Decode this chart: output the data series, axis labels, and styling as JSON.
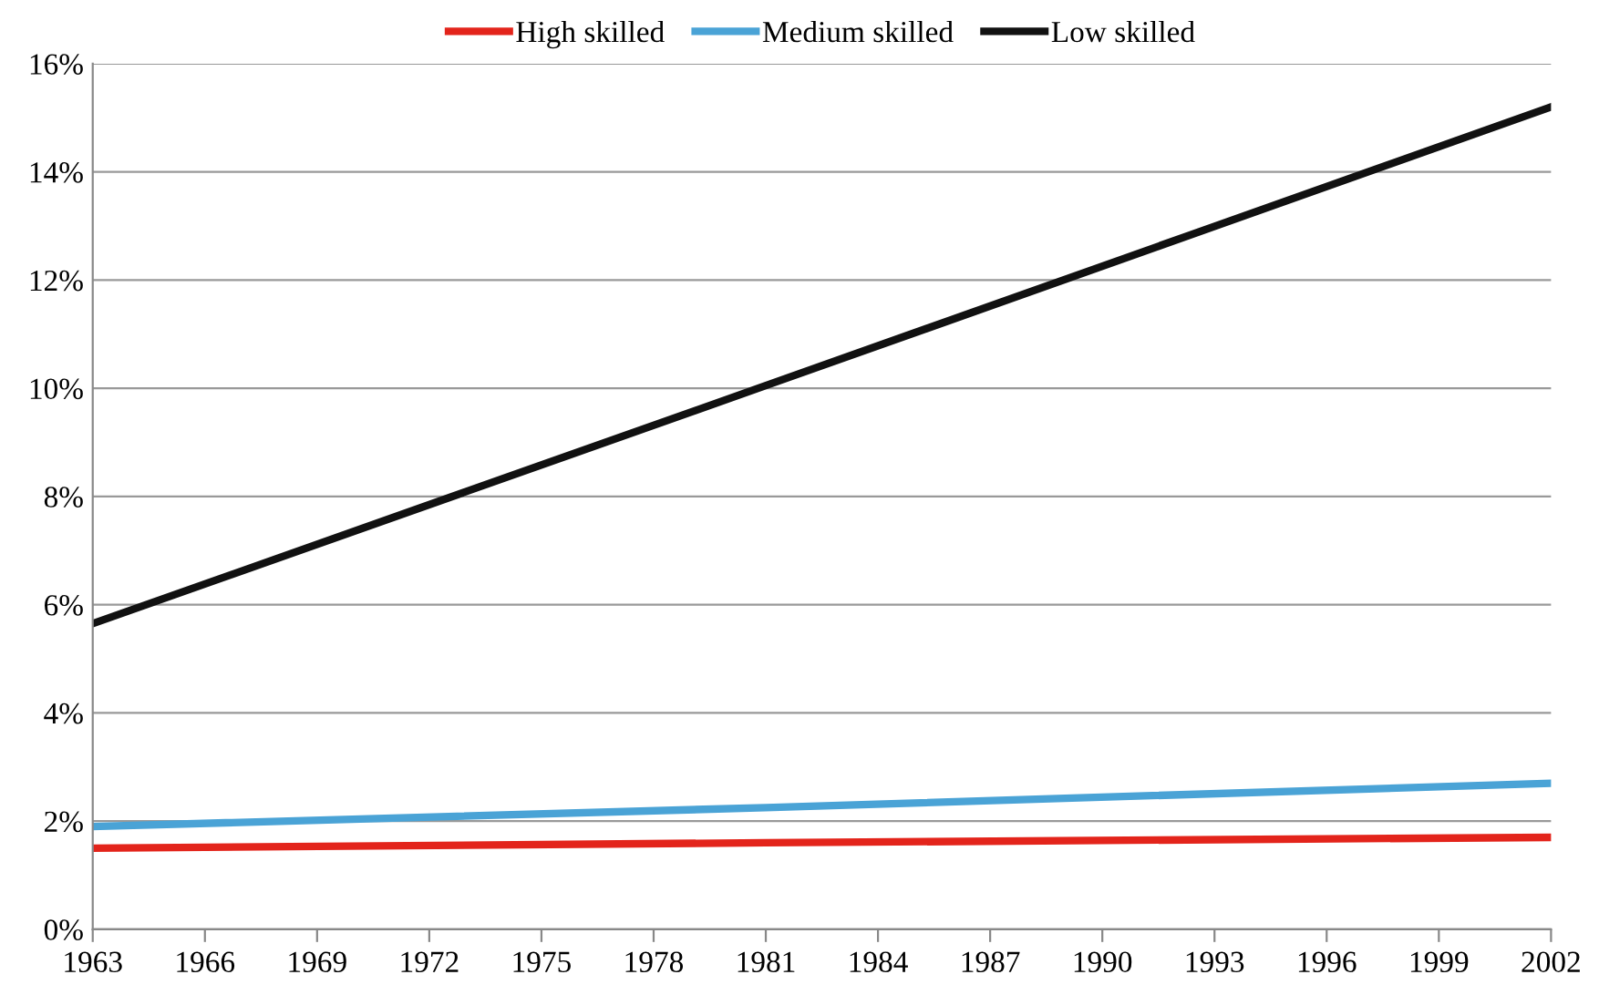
{
  "chart_data": {
    "type": "line",
    "x": [
      1963,
      1981,
      2002
    ],
    "series": [
      {
        "name": "High skilled",
        "color": "#e3241b",
        "values": [
          1.5,
          1.6,
          1.7
        ]
      },
      {
        "name": "Medium skilled",
        "color": "#4aa3d6",
        "values": [
          1.9,
          2.25,
          2.7
        ]
      },
      {
        "name": "Low skilled",
        "color": "#111111",
        "values": [
          5.65,
          10.05,
          15.2
        ]
      }
    ],
    "xlim": [
      1963,
      2002
    ],
    "xticks": [
      1963,
      1966,
      1969,
      1972,
      1975,
      1978,
      1981,
      1984,
      1987,
      1990,
      1993,
      1996,
      1999,
      2002
    ],
    "ylim": [
      0,
      16
    ],
    "yticks": [
      {
        "value": 0,
        "label": "0%"
      },
      {
        "value": 2,
        "label": "2%"
      },
      {
        "value": 4,
        "label": "4%"
      },
      {
        "value": 6,
        "label": "6%"
      },
      {
        "value": 8,
        "label": "8%"
      },
      {
        "value": 10,
        "label": "10%"
      },
      {
        "value": 12,
        "label": "12%"
      },
      {
        "value": 14,
        "label": "14%"
      },
      {
        "value": 16,
        "label": "16%"
      }
    ],
    "grid": "y",
    "legend": "top",
    "marker": "none",
    "line_style": "solid"
  }
}
